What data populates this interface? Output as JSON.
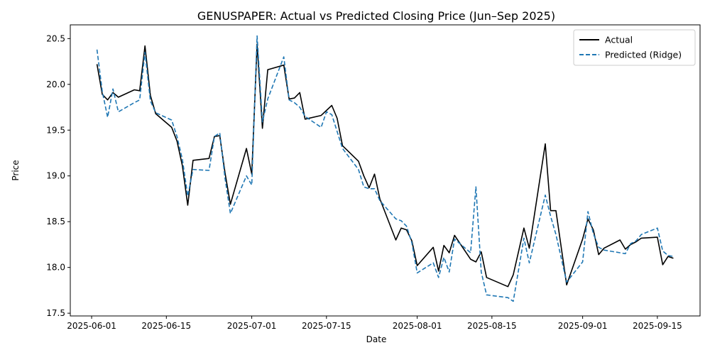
{
  "chart_data": {
    "type": "line",
    "title": "GENUSPAPER: Actual vs Predicted Closing Price (Jun–Sep 2025)",
    "xlabel": "Date",
    "ylabel": "Price",
    "xlim": [
      "2025-05-28",
      "2025-09-23"
    ],
    "ylim": [
      17.47,
      20.65
    ],
    "x_ticks": [
      "2025-06-01",
      "2025-06-15",
      "2025-07-01",
      "2025-07-15",
      "2025-08-01",
      "2025-08-15",
      "2025-09-01",
      "2025-09-15"
    ],
    "y_ticks": [
      "17.5",
      "18.0",
      "18.5",
      "19.0",
      "19.5",
      "20.0",
      "20.5"
    ],
    "grid": false,
    "legend_position": "top-right",
    "series": [
      {
        "name": "Actual",
        "color": "#000000",
        "style": "solid",
        "points": [
          [
            "2025-06-02",
            20.22
          ],
          [
            "2025-06-03",
            19.89
          ],
          [
            "2025-06-04",
            19.83
          ],
          [
            "2025-06-05",
            19.91
          ],
          [
            "2025-06-06",
            19.86
          ],
          [
            "2025-06-09",
            19.94
          ],
          [
            "2025-06-10",
            19.93
          ],
          [
            "2025-06-11",
            20.42
          ],
          [
            "2025-06-12",
            19.88
          ],
          [
            "2025-06-13",
            19.68
          ],
          [
            "2025-06-16",
            19.53
          ],
          [
            "2025-06-17",
            19.38
          ],
          [
            "2025-06-18",
            19.11
          ],
          [
            "2025-06-19",
            18.68
          ],
          [
            "2025-06-20",
            19.17
          ],
          [
            "2025-06-23",
            19.19
          ],
          [
            "2025-06-24",
            19.43
          ],
          [
            "2025-06-25",
            19.44
          ],
          [
            "2025-06-26",
            19.03
          ],
          [
            "2025-06-27",
            18.69
          ],
          [
            "2025-06-30",
            19.3
          ],
          [
            "2025-07-01",
            19.02
          ],
          [
            "2025-07-02",
            20.44
          ],
          [
            "2025-07-03",
            19.52
          ],
          [
            "2025-07-04",
            20.16
          ],
          [
            "2025-07-07",
            20.21
          ],
          [
            "2025-07-08",
            19.84
          ],
          [
            "2025-07-09",
            19.85
          ],
          [
            "2025-07-10",
            19.91
          ],
          [
            "2025-07-11",
            19.62
          ],
          [
            "2025-07-14",
            19.66
          ],
          [
            "2025-07-16",
            19.77
          ],
          [
            "2025-07-17",
            19.63
          ],
          [
            "2025-07-18",
            19.33
          ],
          [
            "2025-07-21",
            19.16
          ],
          [
            "2025-07-22",
            19.0
          ],
          [
            "2025-07-23",
            18.87
          ],
          [
            "2025-07-24",
            19.02
          ],
          [
            "2025-07-25",
            18.75
          ],
          [
            "2025-07-28",
            18.3
          ],
          [
            "2025-07-29",
            18.43
          ],
          [
            "2025-07-30",
            18.41
          ],
          [
            "2025-07-31",
            18.29
          ],
          [
            "2025-08-01",
            18.02
          ],
          [
            "2025-08-04",
            18.22
          ],
          [
            "2025-08-05",
            17.96
          ],
          [
            "2025-08-06",
            18.24
          ],
          [
            "2025-08-07",
            18.16
          ],
          [
            "2025-08-08",
            18.35
          ],
          [
            "2025-08-11",
            18.09
          ],
          [
            "2025-08-12",
            18.06
          ],
          [
            "2025-08-13",
            18.17
          ],
          [
            "2025-08-14",
            17.89
          ],
          [
            "2025-08-18",
            17.79
          ],
          [
            "2025-08-19",
            17.92
          ],
          [
            "2025-08-21",
            18.43
          ],
          [
            "2025-08-22",
            18.21
          ],
          [
            "2025-08-25",
            19.35
          ],
          [
            "2025-08-26",
            18.62
          ],
          [
            "2025-08-27",
            18.62
          ],
          [
            "2025-08-29",
            17.81
          ],
          [
            "2025-09-01",
            18.31
          ],
          [
            "2025-09-02",
            18.53
          ],
          [
            "2025-09-03",
            18.41
          ],
          [
            "2025-09-04",
            18.14
          ],
          [
            "2025-09-05",
            18.21
          ],
          [
            "2025-09-08",
            18.3
          ],
          [
            "2025-09-09",
            18.2
          ],
          [
            "2025-09-10",
            18.25
          ],
          [
            "2025-09-11",
            18.28
          ],
          [
            "2025-09-12",
            18.32
          ],
          [
            "2025-09-15",
            18.33
          ],
          [
            "2025-09-16",
            18.03
          ],
          [
            "2025-09-17",
            18.12
          ],
          [
            "2025-09-18",
            18.1
          ]
        ]
      },
      {
        "name": "Predicted (Ridge)",
        "color": "#1f77b4",
        "style": "dashed",
        "points": [
          [
            "2025-06-02",
            20.38
          ],
          [
            "2025-06-03",
            19.92
          ],
          [
            "2025-06-04",
            19.64
          ],
          [
            "2025-06-05",
            19.95
          ],
          [
            "2025-06-06",
            19.7
          ],
          [
            "2025-06-09",
            19.8
          ],
          [
            "2025-06-10",
            19.83
          ],
          [
            "2025-06-11",
            20.35
          ],
          [
            "2025-06-12",
            19.82
          ],
          [
            "2025-06-13",
            19.69
          ],
          [
            "2025-06-16",
            19.61
          ],
          [
            "2025-06-17",
            19.43
          ],
          [
            "2025-06-18",
            19.18
          ],
          [
            "2025-06-19",
            18.78
          ],
          [
            "2025-06-20",
            19.07
          ],
          [
            "2025-06-23",
            19.06
          ],
          [
            "2025-06-24",
            19.43
          ],
          [
            "2025-06-25",
            19.47
          ],
          [
            "2025-06-26",
            18.97
          ],
          [
            "2025-06-27",
            18.59
          ],
          [
            "2025-06-30",
            19.0
          ],
          [
            "2025-07-01",
            18.9
          ],
          [
            "2025-07-02",
            20.53
          ],
          [
            "2025-07-03",
            19.59
          ],
          [
            "2025-07-04",
            19.84
          ],
          [
            "2025-07-07",
            20.3
          ],
          [
            "2025-07-08",
            19.83
          ],
          [
            "2025-07-09",
            19.8
          ],
          [
            "2025-07-10",
            19.75
          ],
          [
            "2025-07-11",
            19.65
          ],
          [
            "2025-07-14",
            19.53
          ],
          [
            "2025-07-15",
            19.7
          ],
          [
            "2025-07-16",
            19.67
          ],
          [
            "2025-07-18",
            19.3
          ],
          [
            "2025-07-21",
            19.07
          ],
          [
            "2025-07-22",
            18.88
          ],
          [
            "2025-07-23",
            18.86
          ],
          [
            "2025-07-24",
            18.86
          ],
          [
            "2025-07-25",
            18.73
          ],
          [
            "2025-07-28",
            18.53
          ],
          [
            "2025-07-29",
            18.51
          ],
          [
            "2025-07-30",
            18.45
          ],
          [
            "2025-07-31",
            18.27
          ],
          [
            "2025-08-01",
            17.94
          ],
          [
            "2025-08-04",
            18.05
          ],
          [
            "2025-08-05",
            17.89
          ],
          [
            "2025-08-06",
            18.11
          ],
          [
            "2025-08-07",
            17.95
          ],
          [
            "2025-08-08",
            18.31
          ],
          [
            "2025-08-11",
            18.16
          ],
          [
            "2025-08-12",
            18.88
          ],
          [
            "2025-08-13",
            17.95
          ],
          [
            "2025-08-14",
            17.7
          ],
          [
            "2025-08-18",
            17.67
          ],
          [
            "2025-08-19",
            17.63
          ],
          [
            "2025-08-21",
            18.32
          ],
          [
            "2025-08-22",
            18.05
          ],
          [
            "2025-08-25",
            18.79
          ],
          [
            "2025-08-26",
            18.56
          ],
          [
            "2025-08-27",
            18.36
          ],
          [
            "2025-08-29",
            17.84
          ],
          [
            "2025-09-01",
            18.06
          ],
          [
            "2025-09-02",
            18.61
          ],
          [
            "2025-09-03",
            18.37
          ],
          [
            "2025-09-04",
            18.22
          ],
          [
            "2025-09-05",
            18.19
          ],
          [
            "2025-09-08",
            18.16
          ],
          [
            "2025-09-09",
            18.15
          ],
          [
            "2025-09-10",
            18.26
          ],
          [
            "2025-09-11",
            18.29
          ],
          [
            "2025-09-12",
            18.36
          ],
          [
            "2025-09-15",
            18.43
          ],
          [
            "2025-09-16",
            18.18
          ],
          [
            "2025-09-17",
            18.13
          ],
          [
            "2025-09-18",
            18.12
          ]
        ]
      }
    ]
  }
}
